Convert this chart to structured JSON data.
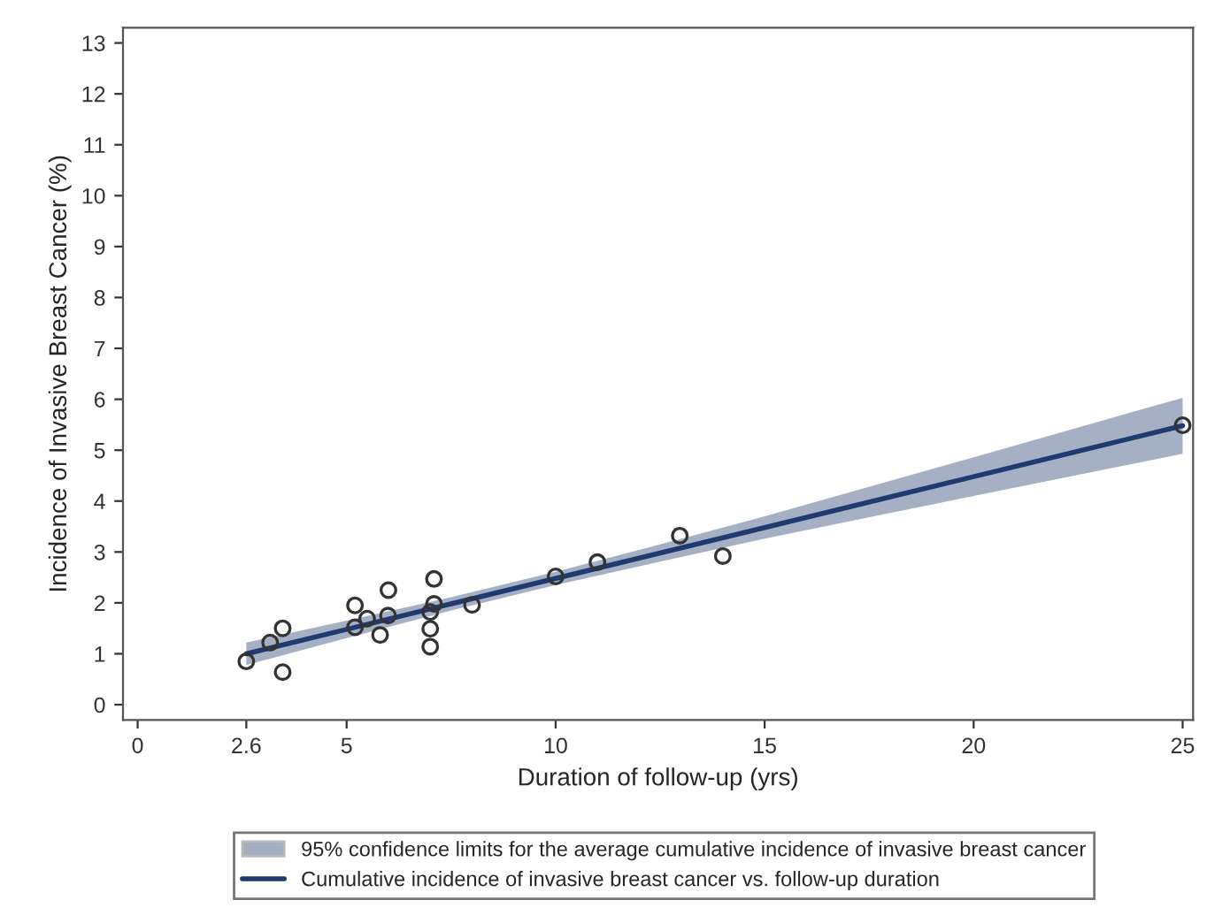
{
  "chart_data": {
    "type": "scatter",
    "xlabel": "Duration of follow-up (yrs)",
    "ylabel": "Incidence of Invasive Breast Cancer (%)",
    "xlim": [
      -0.35,
      25.25
    ],
    "ylim": [
      -0.3,
      13.3
    ],
    "xticks": [
      0,
      2.6,
      5,
      10,
      15,
      20,
      25
    ],
    "yticks": [
      0,
      1,
      2,
      3,
      4,
      5,
      6,
      7,
      8,
      9,
      10,
      11,
      12,
      13
    ],
    "grid": false,
    "legend": "bottom",
    "marker": "circle",
    "annotations": [
      "95% confidence limits for the average cumulative incidence of invasive breast cancer"
    ],
    "series": [
      {
        "color": "#333333",
        "x": [
          2.6,
          3.17,
          3.47,
          3.47,
          5.2,
          5.2,
          5.49,
          5.8,
          5.99,
          6.0,
          7.0,
          7.0,
          7.0,
          7.09,
          7.09,
          8.0,
          10.0,
          11.0,
          12.97,
          14.0,
          25.0
        ],
        "values": [
          0.85,
          1.22,
          1.5,
          0.64,
          1.95,
          1.52,
          1.69,
          1.37,
          1.75,
          2.25,
          1.82,
          1.49,
          1.14,
          2.47,
          1.98,
          1.96,
          2.52,
          2.8,
          3.32,
          2.92,
          5.49
        ]
      },
      {
        "type": "line",
        "name": "Cumulative incidence of invasive breast cancer vs. follow-up duration",
        "color": "#1f3a6e",
        "line_style": "solid",
        "marker": "none",
        "x": [
          2.6,
          5,
          7.5,
          10,
          12.5,
          15,
          20,
          25
        ],
        "values": [
          1.0,
          1.48,
          1.98,
          2.48,
          2.98,
          3.48,
          4.48,
          5.48
        ],
        "lower": [
          0.78,
          1.31,
          1.85,
          2.35,
          2.81,
          3.26,
          4.1,
          4.93
        ],
        "upper": [
          1.22,
          1.65,
          2.11,
          2.61,
          3.15,
          3.7,
          4.86,
          6.03
        ]
      }
    ]
  }
}
